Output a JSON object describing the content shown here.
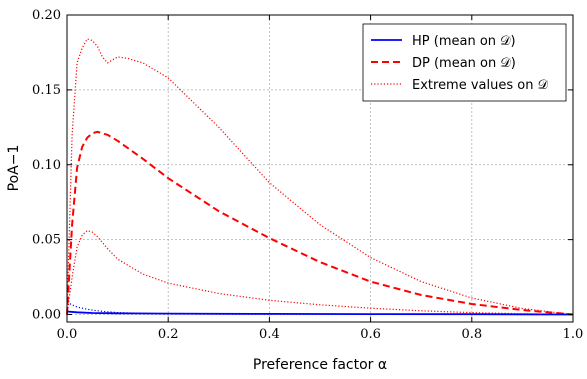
{
  "chart_data": {
    "type": "line",
    "xlabel": "Preference factor α",
    "ylabel": "PoA−1",
    "xlim": [
      0.0,
      1.0
    ],
    "ylim": [
      -0.005,
      0.2
    ],
    "xticks": [
      "0.0",
      "0.2",
      "0.4",
      "0.6",
      "0.8",
      "1.0"
    ],
    "yticks": [
      "0.00",
      "0.05",
      "0.10",
      "0.15",
      "0.20"
    ],
    "grid": true,
    "legend_position": "top-right",
    "series": [
      {
        "name": "HP (mean on 𝒟)",
        "color": "#0000ff",
        "style": "solid",
        "x": [
          0.0,
          0.02,
          0.05,
          0.1,
          0.2,
          0.4,
          0.6,
          0.8,
          1.0
        ],
        "y": [
          0.002,
          0.0015,
          0.001,
          0.0008,
          0.0006,
          0.0004,
          0.0003,
          0.0002,
          0.0
        ]
      },
      {
        "name": "DP (mean on 𝒟)",
        "color": "#ff0000",
        "style": "dashed",
        "x": [
          0.0,
          0.01,
          0.02,
          0.03,
          0.04,
          0.05,
          0.06,
          0.07,
          0.08,
          0.1,
          0.15,
          0.2,
          0.3,
          0.4,
          0.5,
          0.6,
          0.7,
          0.8,
          0.9,
          0.95,
          1.0
        ],
        "y": [
          0.0,
          0.06,
          0.098,
          0.112,
          0.118,
          0.121,
          0.122,
          0.121,
          0.12,
          0.116,
          0.104,
          0.091,
          0.069,
          0.051,
          0.035,
          0.022,
          0.013,
          0.007,
          0.003,
          0.0015,
          0.0
        ]
      },
      {
        "name": "Extreme values on 𝒟",
        "color": "#ff0000",
        "style": "dotted",
        "x": [
          0.0,
          0.01,
          0.02,
          0.03,
          0.04,
          0.05,
          0.06,
          0.07,
          0.08,
          0.09,
          0.1,
          0.12,
          0.15,
          0.2,
          0.3,
          0.4,
          0.5,
          0.6,
          0.7,
          0.8,
          0.9,
          0.95,
          1.0
        ],
        "y": [
          0.0,
          0.12,
          0.168,
          0.178,
          0.184,
          0.183,
          0.179,
          0.172,
          0.168,
          0.17,
          0.172,
          0.171,
          0.168,
          0.158,
          0.125,
          0.088,
          0.06,
          0.038,
          0.022,
          0.011,
          0.004,
          0.002,
          0.0
        ]
      },
      {
        "name": "",
        "color": "#ff0000",
        "style": "dotted",
        "x": [
          0.0,
          0.01,
          0.02,
          0.03,
          0.04,
          0.05,
          0.06,
          0.08,
          0.1,
          0.15,
          0.2,
          0.3,
          0.4,
          0.5,
          0.6,
          0.7,
          0.8,
          0.9,
          1.0
        ],
        "y": [
          0.0,
          0.025,
          0.045,
          0.053,
          0.056,
          0.055,
          0.052,
          0.044,
          0.037,
          0.027,
          0.021,
          0.014,
          0.0095,
          0.0065,
          0.0042,
          0.0025,
          0.0013,
          0.0005,
          0.0
        ]
      },
      {
        "name": "",
        "color": "#0000ff",
        "style": "dotted",
        "x": [
          0.0,
          0.01,
          0.02,
          0.04,
          0.06,
          0.08,
          0.1,
          0.15,
          0.2,
          0.3,
          0.5,
          0.7,
          1.0
        ],
        "y": [
          0.008,
          0.0065,
          0.005,
          0.0035,
          0.0025,
          0.0018,
          0.0013,
          0.0008,
          0.0005,
          0.0003,
          0.0002,
          0.0001,
          0.0
        ]
      }
    ]
  }
}
